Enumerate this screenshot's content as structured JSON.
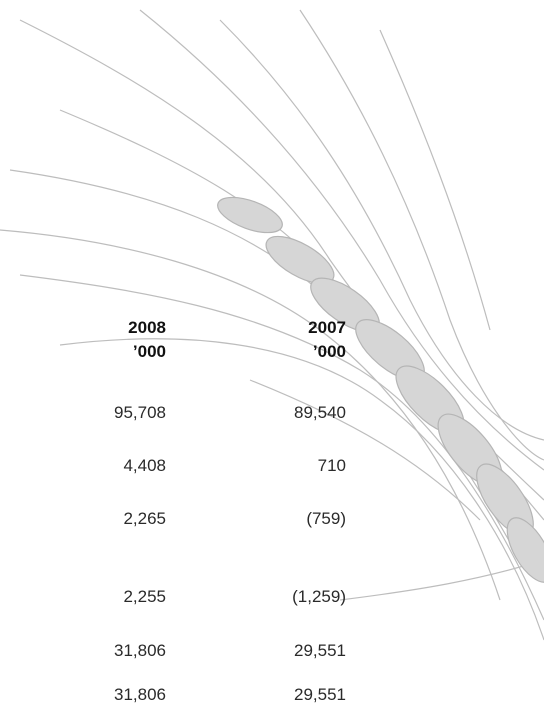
{
  "table": {
    "header": [
      {
        "year": "2008",
        "unit": "’000"
      },
      {
        "year": "2007",
        "unit": "’000"
      }
    ],
    "rows": [
      [
        "95,708",
        "89,540"
      ],
      [
        "4,408",
        "710"
      ],
      [
        "2,265",
        "(759)"
      ],
      [
        "2,255",
        "(1,259)"
      ],
      [
        "31,806",
        "29,551"
      ],
      [
        "31,806",
        "29,551"
      ]
    ]
  }
}
